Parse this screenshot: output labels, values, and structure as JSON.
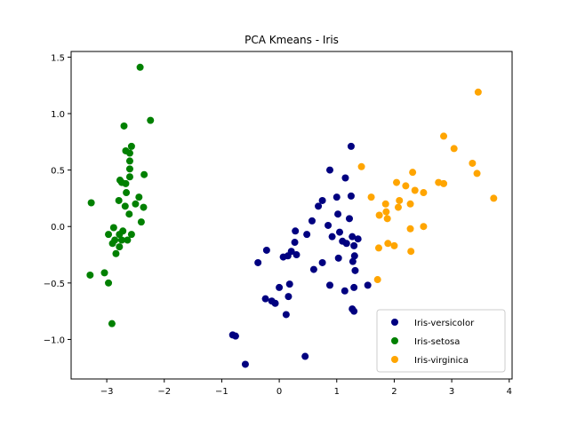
{
  "chart_data": {
    "type": "scatter",
    "title": "PCA Kmeans - Iris",
    "xlabel": "",
    "ylabel": "",
    "xlim": [
      -3.62,
      4.05
    ],
    "ylim": [
      -1.35,
      1.55
    ],
    "xticks": [
      -3,
      -2,
      -1,
      0,
      1,
      2,
      3,
      4
    ],
    "yticks": [
      -1.0,
      -0.5,
      0.0,
      0.5,
      1.0,
      1.5
    ],
    "xtick_labels": [
      "−3",
      "−2",
      "−1",
      "0",
      "1",
      "2",
      "3",
      "4"
    ],
    "ytick_labels": [
      "−1.0",
      "−0.5",
      "0.0",
      "0.5",
      "1.0",
      "1.5"
    ],
    "grid": false,
    "legend_position": "lower-right",
    "series": [
      {
        "name": "Iris-versicolor",
        "color": "#000080",
        "points": [
          [
            1.25,
            0.71
          ],
          [
            0.88,
            0.5
          ],
          [
            1.15,
            0.43
          ],
          [
            0.75,
            0.23
          ],
          [
            0.68,
            0.18
          ],
          [
            1.0,
            0.26
          ],
          [
            1.25,
            0.27
          ],
          [
            1.02,
            0.11
          ],
          [
            0.57,
            0.05
          ],
          [
            0.85,
            0.01
          ],
          [
            1.22,
            0.07
          ],
          [
            0.48,
            -0.07
          ],
          [
            0.28,
            -0.04
          ],
          [
            1.05,
            -0.05
          ],
          [
            0.92,
            -0.09
          ],
          [
            1.1,
            -0.13
          ],
          [
            1.17,
            -0.15
          ],
          [
            1.27,
            -0.09
          ],
          [
            1.37,
            -0.11
          ],
          [
            1.3,
            -0.17
          ],
          [
            0.27,
            -0.14
          ],
          [
            1.31,
            -0.26
          ],
          [
            0.21,
            -0.22
          ],
          [
            0.15,
            -0.26
          ],
          [
            0.07,
            -0.27
          ],
          [
            0.3,
            -0.25
          ],
          [
            -0.22,
            -0.21
          ],
          [
            -0.37,
            -0.32
          ],
          [
            0.6,
            -0.38
          ],
          [
            0.75,
            -0.32
          ],
          [
            1.03,
            -0.28
          ],
          [
            1.28,
            -0.31
          ],
          [
            1.32,
            -0.39
          ],
          [
            0.88,
            -0.52
          ],
          [
            1.14,
            -0.57
          ],
          [
            1.3,
            -0.54
          ],
          [
            1.54,
            -0.52
          ],
          [
            0.18,
            -0.51
          ],
          [
            0.0,
            -0.54
          ],
          [
            0.16,
            -0.62
          ],
          [
            -0.24,
            -0.64
          ],
          [
            -0.13,
            -0.66
          ],
          [
            -0.07,
            -0.68
          ],
          [
            0.12,
            -0.78
          ],
          [
            1.27,
            -0.73
          ],
          [
            1.3,
            -0.75
          ],
          [
            -0.81,
            -0.96
          ],
          [
            -0.76,
            -0.97
          ],
          [
            -0.59,
            -1.22
          ],
          [
            0.45,
            -1.15
          ]
        ]
      },
      {
        "name": "Iris-setosa",
        "color": "#008000",
        "points": [
          [
            -2.42,
            1.41
          ],
          [
            -2.24,
            0.94
          ],
          [
            -2.7,
            0.89
          ],
          [
            -2.57,
            0.71
          ],
          [
            -2.67,
            0.67
          ],
          [
            -2.6,
            0.65
          ],
          [
            -2.6,
            0.58
          ],
          [
            -2.6,
            0.51
          ],
          [
            -2.6,
            0.44
          ],
          [
            -2.35,
            0.46
          ],
          [
            -2.77,
            0.41
          ],
          [
            -2.74,
            0.39
          ],
          [
            -2.67,
            0.38
          ],
          [
            -2.66,
            0.3
          ],
          [
            -2.44,
            0.26
          ],
          [
            -2.79,
            0.23
          ],
          [
            -2.5,
            0.2
          ],
          [
            -2.68,
            0.18
          ],
          [
            -2.36,
            0.17
          ],
          [
            -3.27,
            0.21
          ],
          [
            -2.61,
            0.11
          ],
          [
            -2.88,
            -0.01
          ],
          [
            -2.72,
            -0.04
          ],
          [
            -2.4,
            0.04
          ],
          [
            -2.97,
            -0.07
          ],
          [
            -2.78,
            -0.07
          ],
          [
            -2.57,
            -0.07
          ],
          [
            -2.86,
            -0.12
          ],
          [
            -2.74,
            -0.12
          ],
          [
            -2.64,
            -0.12
          ],
          [
            -2.9,
            -0.15
          ],
          [
            -2.78,
            -0.18
          ],
          [
            -2.84,
            -0.24
          ],
          [
            -3.04,
            -0.41
          ],
          [
            -3.29,
            -0.43
          ],
          [
            -2.97,
            -0.5
          ],
          [
            -2.91,
            -0.86
          ]
        ]
      },
      {
        "name": "Iris-virginica",
        "color": "#ffa500",
        "points": [
          [
            3.46,
            1.19
          ],
          [
            2.86,
            0.8
          ],
          [
            3.04,
            0.69
          ],
          [
            3.36,
            0.56
          ],
          [
            3.44,
            0.47
          ],
          [
            1.43,
            0.53
          ],
          [
            2.32,
            0.48
          ],
          [
            2.77,
            0.39
          ],
          [
            2.86,
            0.38
          ],
          [
            2.04,
            0.39
          ],
          [
            2.2,
            0.36
          ],
          [
            2.36,
            0.32
          ],
          [
            2.51,
            0.3
          ],
          [
            3.73,
            0.25
          ],
          [
            1.6,
            0.26
          ],
          [
            2.09,
            0.23
          ],
          [
            2.28,
            0.2
          ],
          [
            2.07,
            0.17
          ],
          [
            1.85,
            0.2
          ],
          [
            1.86,
            0.13
          ],
          [
            1.74,
            0.1
          ],
          [
            1.88,
            0.07
          ],
          [
            2.51,
            0.0
          ],
          [
            2.28,
            -0.02
          ],
          [
            2.0,
            -0.17
          ],
          [
            1.89,
            -0.15
          ],
          [
            1.73,
            -0.19
          ],
          [
            2.29,
            -0.22
          ],
          [
            1.71,
            -0.47
          ]
        ]
      }
    ]
  }
}
